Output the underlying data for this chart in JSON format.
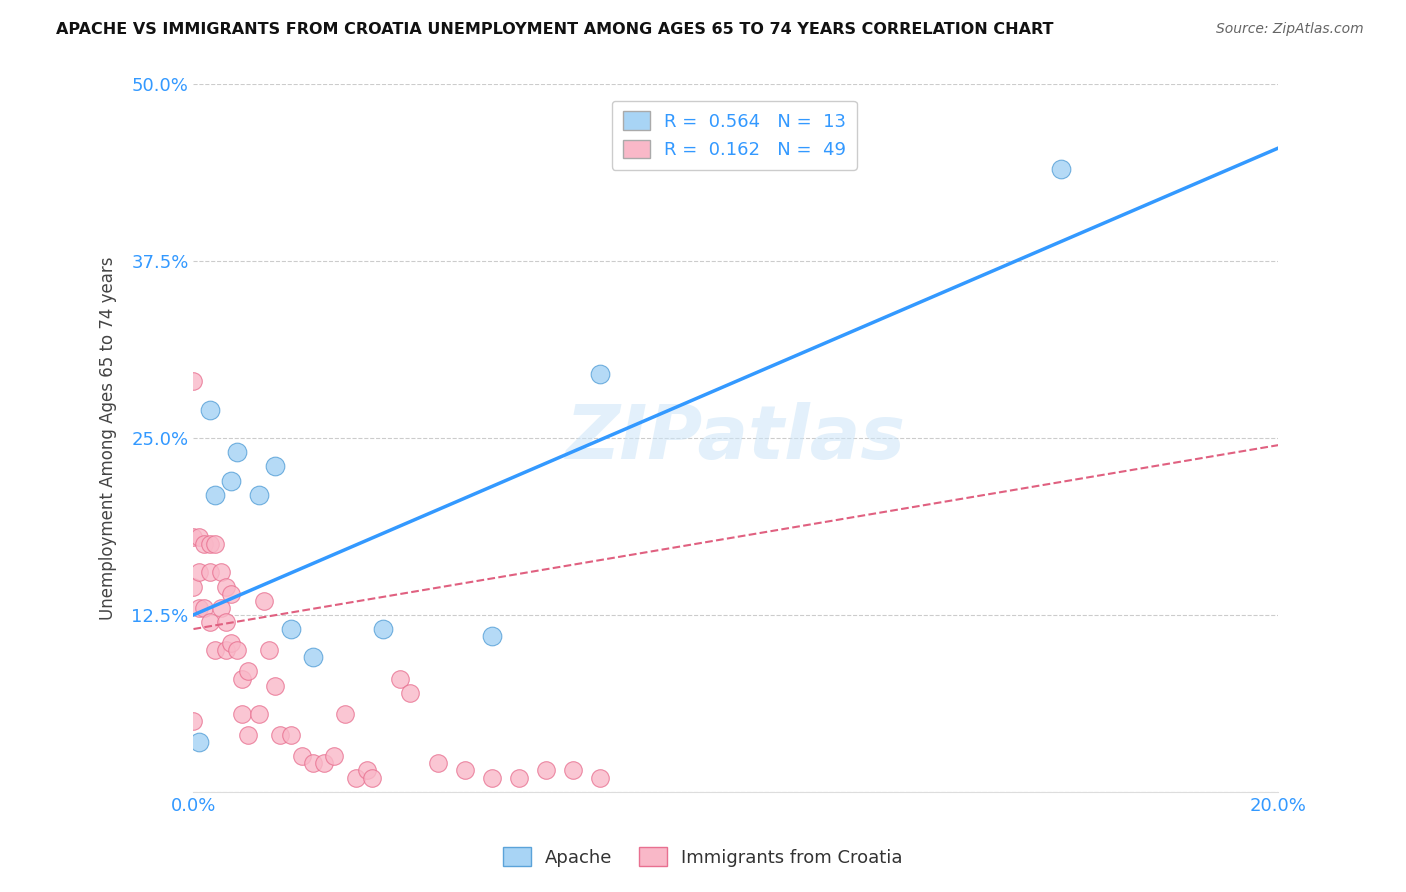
{
  "title": "APACHE VS IMMIGRANTS FROM CROATIA UNEMPLOYMENT AMONG AGES 65 TO 74 YEARS CORRELATION CHART",
  "source": "Source: ZipAtlas.com",
  "ylabel": "Unemployment Among Ages 65 to 74 years",
  "xlim": [
    0.0,
    0.2
  ],
  "ylim": [
    0.0,
    0.5
  ],
  "xticks": [
    0.0,
    0.05,
    0.1,
    0.15,
    0.2
  ],
  "yticks": [
    0.0,
    0.125,
    0.25,
    0.375,
    0.5
  ],
  "xtick_labels": [
    "0.0%",
    "",
    "",
    "",
    "20.0%"
  ],
  "ytick_labels": [
    "",
    "12.5%",
    "25.0%",
    "37.5%",
    "50.0%"
  ],
  "apache_R": 0.564,
  "apache_N": 13,
  "croatia_R": 0.162,
  "croatia_N": 49,
  "apache_color": "#a8d4f5",
  "apache_edge_color": "#5ba3d9",
  "croatia_color": "#f9b8c8",
  "croatia_edge_color": "#e87090",
  "trend_apache_color": "#3399ff",
  "trend_croatia_color": "#e06080",
  "watermark": "ZIPatlas",
  "apache_points_x": [
    0.001,
    0.003,
    0.004,
    0.007,
    0.008,
    0.012,
    0.015,
    0.018,
    0.022,
    0.035,
    0.055,
    0.075,
    0.16
  ],
  "apache_points_y": [
    0.035,
    0.27,
    0.21,
    0.22,
    0.24,
    0.21,
    0.23,
    0.115,
    0.095,
    0.115,
    0.11,
    0.295,
    0.44
  ],
  "croatia_points_x": [
    0.0,
    0.0,
    0.0,
    0.0,
    0.001,
    0.001,
    0.001,
    0.002,
    0.002,
    0.003,
    0.003,
    0.003,
    0.004,
    0.004,
    0.005,
    0.005,
    0.006,
    0.006,
    0.006,
    0.007,
    0.007,
    0.008,
    0.009,
    0.009,
    0.01,
    0.01,
    0.012,
    0.013,
    0.014,
    0.015,
    0.016,
    0.018,
    0.02,
    0.022,
    0.024,
    0.026,
    0.028,
    0.03,
    0.032,
    0.033,
    0.038,
    0.04,
    0.045,
    0.05,
    0.055,
    0.06,
    0.065,
    0.07,
    0.075
  ],
  "croatia_points_y": [
    0.29,
    0.18,
    0.145,
    0.05,
    0.18,
    0.155,
    0.13,
    0.175,
    0.13,
    0.175,
    0.155,
    0.12,
    0.175,
    0.1,
    0.155,
    0.13,
    0.145,
    0.12,
    0.1,
    0.14,
    0.105,
    0.1,
    0.08,
    0.055,
    0.085,
    0.04,
    0.055,
    0.135,
    0.1,
    0.075,
    0.04,
    0.04,
    0.025,
    0.02,
    0.02,
    0.025,
    0.055,
    0.01,
    0.015,
    0.01,
    0.08,
    0.07,
    0.02,
    0.015,
    0.01,
    0.01,
    0.015,
    0.015,
    0.01
  ],
  "apache_trend_x": [
    0.0,
    0.2
  ],
  "apache_trend_y": [
    0.125,
    0.455
  ],
  "croatia_trend_x": [
    0.0,
    0.2
  ],
  "croatia_trend_y": [
    0.115,
    0.245
  ]
}
